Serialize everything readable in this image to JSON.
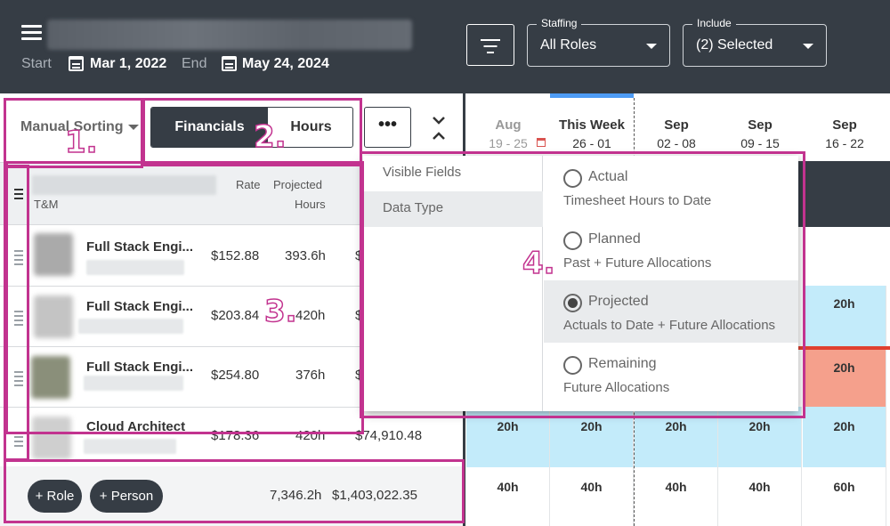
{
  "header": {
    "start_label": "Start",
    "start_date": "Mar 1, 2022",
    "end_label": "End",
    "end_date": "May 24, 2024",
    "staffing": {
      "caption": "Staffing",
      "value": "All Roles"
    },
    "include": {
      "caption": "Include",
      "value": "(2) Selected"
    }
  },
  "toolbar": {
    "sort_label": "Manual Sorting",
    "toggle_financials": "Financials",
    "toggle_hours": "Hours",
    "more_label": "•••"
  },
  "timeline": {
    "weeks": [
      {
        "name": "Aug",
        "range": "19 - 25"
      },
      {
        "name": "This Week",
        "range": "26 - 01"
      },
      {
        "name": "Sep",
        "range": "02 - 08"
      },
      {
        "name": "Sep",
        "range": "09 - 15"
      },
      {
        "name": "Sep",
        "range": "16 - 22"
      }
    ]
  },
  "table": {
    "group_label": "T&M",
    "col_rate": "Rate",
    "col_projected_1": "Projected",
    "col_projected_2": "Hours",
    "rows": [
      {
        "title": "Full Stack Engi...",
        "rate": "$152.88",
        "hours": "393.6h",
        "amount": "$"
      },
      {
        "title": "Full Stack Engi...",
        "rate": "$203.84",
        "hours": "420h",
        "amount": "$"
      },
      {
        "title": "Full Stack Engi...",
        "rate": "$254.80",
        "hours": "376h",
        "amount": "$"
      },
      {
        "title": "Cloud Architect",
        "rate": "$178.36",
        "hours": "420h",
        "amount": "$74,910.48"
      }
    ],
    "footer": {
      "add_role": "+ Role",
      "add_person": "+ Person",
      "total_hours": "7,346.2h",
      "total_amount": "$1,403,022.35"
    }
  },
  "grid": {
    "row2": [
      "20h"
    ],
    "row3": [
      "20h"
    ],
    "row4": [
      "20h",
      "20h",
      "20h",
      "20h",
      "20h"
    ],
    "totals": [
      "40h",
      "40h",
      "40h",
      "40h",
      "60h"
    ]
  },
  "dropdown": {
    "menu": [
      "Visible Fields",
      "Data Type"
    ],
    "options": [
      {
        "title": "Actual",
        "desc": "Timesheet Hours to Date",
        "selected": false
      },
      {
        "title": "Planned",
        "desc": "Past + Future Allocations",
        "selected": false
      },
      {
        "title": "Projected",
        "desc": "Actuals to Date + Future Allocations",
        "selected": true
      },
      {
        "title": "Remaining",
        "desc": "Future Allocations",
        "selected": false
      }
    ]
  },
  "annotations": [
    "1.",
    "2.",
    "3.",
    "4."
  ],
  "colors": {
    "header_bg": "#363d45",
    "accent_blue": "#4e9cf5",
    "cell_blue": "#c3ebfa",
    "cell_red": "#f5a08c",
    "annotation": "#c2338f"
  }
}
